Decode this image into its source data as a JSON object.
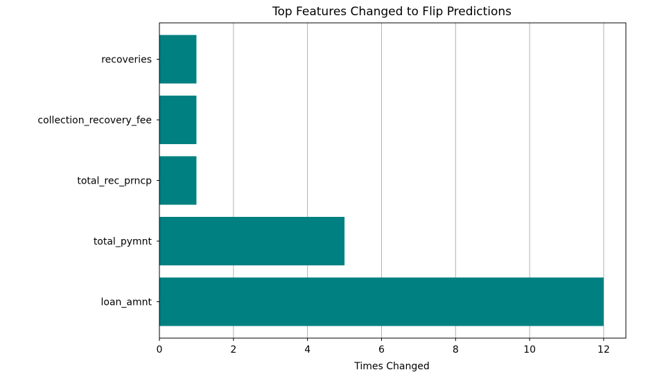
{
  "chart_data": {
    "type": "bar",
    "orientation": "horizontal",
    "title": "Top Features Changed to Flip Predictions",
    "xlabel": "Times Changed",
    "ylabel": "",
    "categories": [
      "loan_amnt",
      "total_pymnt",
      "total_rec_prncp",
      "collection_recovery_fee",
      "recoveries"
    ],
    "values": [
      12,
      5,
      1,
      1,
      1
    ],
    "xlim": [
      0,
      12.6
    ],
    "xticks": [
      "0",
      "2",
      "4",
      "6",
      "8",
      "10",
      "12"
    ],
    "grid": "x",
    "legend": "none",
    "bar_color": "#008080"
  }
}
